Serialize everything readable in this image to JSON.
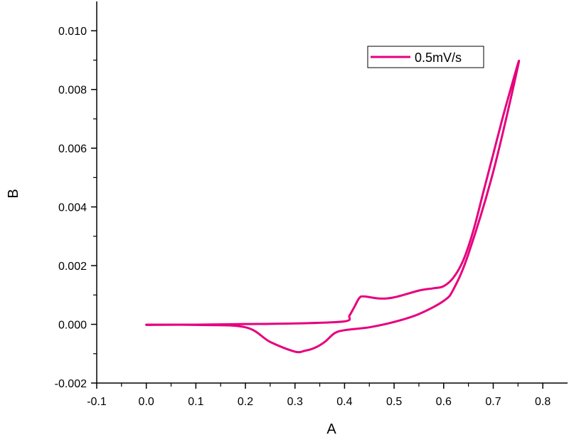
{
  "chart_data": {
    "type": "line",
    "title": "",
    "xlabel": "A",
    "ylabel": "B",
    "xlim": [
      -0.1,
      0.85
    ],
    "ylim": [
      -0.002,
      0.011
    ],
    "grid": false,
    "legend": "top-right",
    "x_ticks": [
      -0.1,
      0.0,
      0.1,
      0.2,
      0.3,
      0.4,
      0.5,
      0.6,
      0.7,
      0.8
    ],
    "x_tick_labels": [
      "-0.1",
      "0.0",
      "0.1",
      "0.2",
      "0.3",
      "0.4",
      "0.5",
      "0.6",
      "0.7",
      "0.8"
    ],
    "y_ticks": [
      -0.002,
      0.0,
      0.002,
      0.004,
      0.006,
      0.008,
      0.01
    ],
    "y_tick_labels": [
      "-0.002",
      "0.000",
      "0.002",
      "0.004",
      "0.006",
      "0.008",
      "0.010"
    ],
    "series": [
      {
        "name": "0.5mV/s",
        "color": "#e6007e",
        "x": [
          0.0,
          0.1,
          0.2,
          0.25,
          0.3,
          0.32,
          0.34,
          0.36,
          0.38,
          0.4,
          0.45,
          0.5,
          0.55,
          0.6,
          0.62,
          0.65,
          0.7,
          0.75,
          0.74,
          0.72,
          0.7,
          0.68,
          0.66,
          0.64,
          0.62,
          0.6,
          0.58,
          0.55,
          0.5,
          0.47,
          0.44,
          0.43,
          0.42,
          0.41,
          0.4,
          0.3,
          0.2,
          0.1,
          0.0
        ],
        "y": [
          -2e-05,
          -2e-05,
          -0.0001,
          -0.0006,
          -0.00093,
          -0.0009,
          -0.0008,
          -0.0006,
          -0.0003,
          -0.0002,
          -0.0001,
          8e-05,
          0.00035,
          0.0008,
          0.0012,
          0.0024,
          0.0052,
          0.0088,
          0.0083,
          0.0071,
          0.0058,
          0.0045,
          0.0032,
          0.0022,
          0.0016,
          0.0013,
          0.00123,
          0.00115,
          0.00092,
          0.00088,
          0.00095,
          0.0009,
          0.0006,
          0.0003,
          0.0001,
          3e-05,
          1e-05,
          -1e-05,
          -1e-05
        ]
      }
    ]
  }
}
